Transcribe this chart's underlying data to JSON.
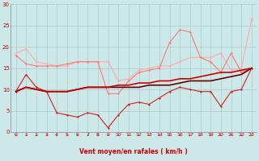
{
  "xlabel": "Vent moyen/en rafales ( km/h )",
  "background_color": "#cce8e8",
  "grid_color": "#aacccc",
  "xlim": [
    -0.5,
    23.5
  ],
  "ylim": [
    0,
    30
  ],
  "yticks": [
    0,
    5,
    10,
    15,
    20,
    25,
    30
  ],
  "xticks": [
    0,
    1,
    2,
    3,
    4,
    5,
    6,
    7,
    8,
    9,
    10,
    11,
    12,
    13,
    14,
    15,
    16,
    17,
    18,
    19,
    20,
    21,
    22,
    23
  ],
  "series": [
    {
      "x": [
        0,
        1,
        2,
        3,
        4,
        5,
        6,
        7,
        8,
        9,
        10,
        11,
        12,
        13,
        14,
        15,
        16,
        17,
        18,
        19,
        20,
        21,
        22,
        23
      ],
      "y": [
        18.5,
        19.5,
        16.5,
        16.0,
        15.5,
        15.5,
        16.5,
        16.5,
        16.5,
        16.5,
        12.0,
        12.5,
        14.5,
        15.0,
        15.5,
        15.5,
        16.5,
        17.5,
        17.5,
        17.5,
        18.5,
        14.5,
        15.0,
        26.5
      ],
      "color": "#ffaaaa",
      "linewidth": 0.8,
      "marker": "D",
      "markersize": 1.5
    },
    {
      "x": [
        0,
        1,
        2,
        3,
        4,
        5,
        6,
        7,
        8,
        9,
        10,
        11,
        12,
        13,
        14,
        15,
        16,
        17,
        18,
        19,
        20,
        21,
        22,
        23
      ],
      "y": [
        18.0,
        16.0,
        15.5,
        15.5,
        15.5,
        16.0,
        16.5,
        16.5,
        16.5,
        9.0,
        9.0,
        12.0,
        14.0,
        14.5,
        15.0,
        21.0,
        24.0,
        23.5,
        17.5,
        16.5,
        14.0,
        18.5,
        14.0,
        15.0
      ],
      "color": "#ff7777",
      "linewidth": 0.8,
      "marker": "D",
      "markersize": 1.5
    },
    {
      "x": [
        0,
        1,
        2,
        3,
        4,
        5,
        6,
        7,
        8,
        9,
        10,
        11,
        12,
        13,
        14,
        15,
        16,
        17,
        18,
        19,
        20,
        21,
        22,
        23
      ],
      "y": [
        9.5,
        13.5,
        10.5,
        9.5,
        4.5,
        4.0,
        3.5,
        4.5,
        4.0,
        1.0,
        4.0,
        6.5,
        7.0,
        6.5,
        8.0,
        9.5,
        10.5,
        10.0,
        9.5,
        9.5,
        6.0,
        9.5,
        10.0,
        15.0
      ],
      "color": "#cc2222",
      "linewidth": 0.8,
      "marker": "D",
      "markersize": 1.5
    },
    {
      "x": [
        0,
        1,
        2,
        3,
        4,
        5,
        6,
        7,
        8,
        9,
        10,
        11,
        12,
        13,
        14,
        15,
        16,
        17,
        18,
        19,
        20,
        21,
        22,
        23
      ],
      "y": [
        9.5,
        10.5,
        10.0,
        9.5,
        9.5,
        9.5,
        10.0,
        10.5,
        10.5,
        10.5,
        10.5,
        10.5,
        10.5,
        11.0,
        11.0,
        11.0,
        11.5,
        12.0,
        12.0,
        12.0,
        12.5,
        13.0,
        13.5,
        15.0
      ],
      "color": "#660000",
      "linewidth": 1.2,
      "marker": null,
      "markersize": 0
    },
    {
      "x": [
        0,
        1,
        2,
        3,
        4,
        5,
        6,
        7,
        8,
        9,
        10,
        11,
        12,
        13,
        14,
        15,
        16,
        17,
        18,
        19,
        20,
        21,
        22,
        23
      ],
      "y": [
        9.5,
        10.5,
        10.0,
        9.5,
        9.5,
        9.5,
        10.0,
        10.5,
        10.5,
        10.5,
        11.0,
        11.0,
        11.5,
        11.5,
        12.0,
        12.0,
        12.5,
        12.5,
        13.0,
        13.5,
        14.0,
        14.0,
        14.5,
        15.0
      ],
      "color": "#cc0000",
      "linewidth": 1.2,
      "marker": null,
      "markersize": 0
    }
  ],
  "wind_directions": [
    90,
    90,
    90,
    90,
    45,
    90,
    90,
    90,
    90,
    135,
    135,
    135,
    135,
    135,
    135,
    135,
    135,
    270,
    270,
    270,
    270,
    180,
    135,
    135
  ],
  "wind_arrow_color": "#cc4444"
}
